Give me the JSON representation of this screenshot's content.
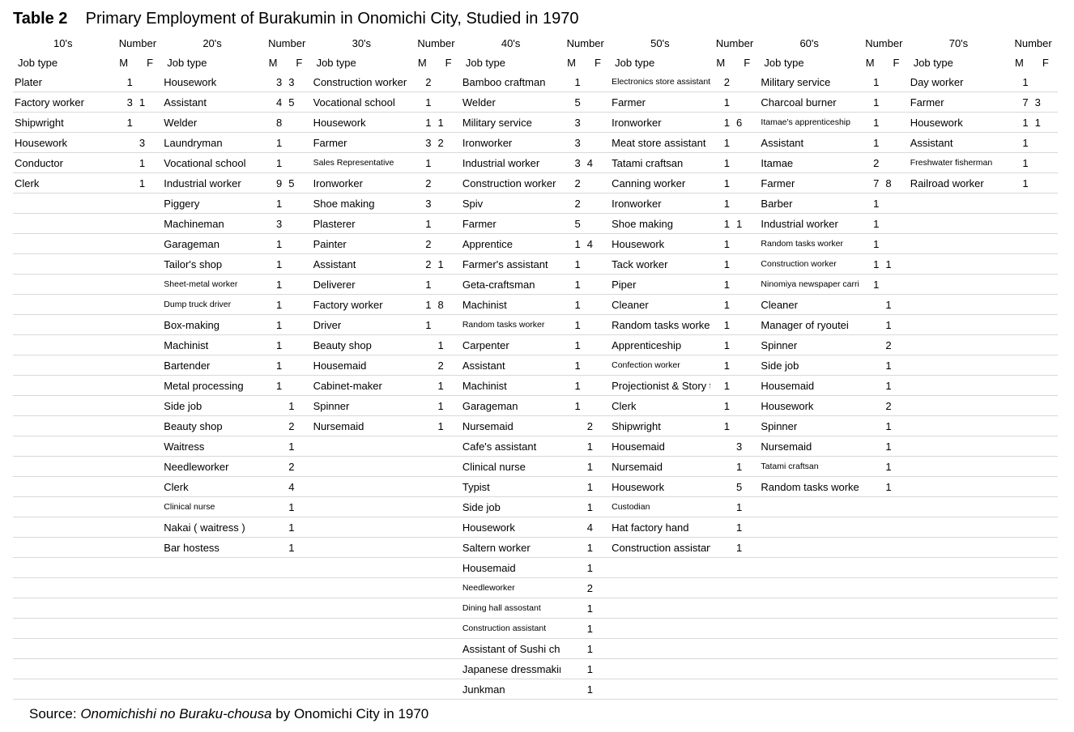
{
  "title_label": "Table 2",
  "title_text": "Primary Employment of Burakumin in Onomichi City, Studied in 1970",
  "source_prefix": "Source: ",
  "source_italic": "Onomichishi no Buraku-chousa ",
  "source_suffix": "by Onomichi City in 1970",
  "header": {
    "decades": [
      "10's",
      "20's",
      "30's",
      "40's",
      "50's",
      "60's",
      "70's"
    ],
    "number": "Number",
    "job": "Job type",
    "m": "M",
    "f": "F"
  },
  "small_labels": {
    "50_0": true,
    "50_14": true,
    "50_21": true,
    "60_2": true,
    "60_8": true,
    "60_9": true,
    "60_10": true,
    "60_19": true,
    "40_25": true,
    "40_26": true,
    "40_27": true,
    "40_12": true,
    "30_4": true,
    "70_4": true,
    "20_10": true,
    "20_11": true,
    "20_21": true
  },
  "rows": [
    {
      "c10": {
        "j": "Plater",
        "m": "1",
        "f": ""
      },
      "c20": {
        "j": "Housework",
        "m": "3",
        "f": "3"
      },
      "c30": {
        "j": "Construction worker",
        "m": "2",
        "f": ""
      },
      "c40": {
        "j": "Bamboo craftman",
        "m": "1",
        "f": ""
      },
      "c50": {
        "j": "Electronics store assistant",
        "m": "2",
        "f": ""
      },
      "c60": {
        "j": "Military service",
        "m": "1",
        "f": ""
      },
      "c70": {
        "j": "Day worker",
        "m": "1",
        "f": ""
      }
    },
    {
      "c10": {
        "j": "Factory worker",
        "m": "3",
        "f": "1"
      },
      "c20": {
        "j": "Assistant",
        "m": "4",
        "f": "5"
      },
      "c30": {
        "j": "Vocational school",
        "m": "1",
        "f": ""
      },
      "c40": {
        "j": "Welder",
        "m": "5",
        "f": ""
      },
      "c50": {
        "j": "Farmer",
        "m": "1",
        "f": ""
      },
      "c60": {
        "j": "Charcoal burner",
        "m": "1",
        "f": ""
      },
      "c70": {
        "j": "Farmer",
        "m": "7",
        "f": "3"
      }
    },
    {
      "c10": {
        "j": "Shipwright",
        "m": "1",
        "f": ""
      },
      "c20": {
        "j": "Welder",
        "m": "8",
        "f": ""
      },
      "c30": {
        "j": "Housework",
        "m": "1",
        "f": "1"
      },
      "c40": {
        "j": "Military service",
        "m": "3",
        "f": ""
      },
      "c50": {
        "j": "Ironworker",
        "m": "1",
        "f": "6"
      },
      "c60": {
        "j": "Itamae's apprenticeship",
        "m": "1",
        "f": ""
      },
      "c70": {
        "j": "Housework",
        "m": "1",
        "f": "1"
      }
    },
    {
      "c10": {
        "j": "Housework",
        "m": "",
        "f": "3"
      },
      "c20": {
        "j": "Laundryman",
        "m": "1",
        "f": ""
      },
      "c30": {
        "j": "Farmer",
        "m": "3",
        "f": "2"
      },
      "c40": {
        "j": "Ironworker",
        "m": "3",
        "f": ""
      },
      "c50": {
        "j": "Meat store assistant",
        "m": "1",
        "f": ""
      },
      "c60": {
        "j": "Assistant",
        "m": "1",
        "f": ""
      },
      "c70": {
        "j": "Assistant",
        "m": "1",
        "f": ""
      }
    },
    {
      "c10": {
        "j": "Conductor",
        "m": "",
        "f": "1"
      },
      "c20": {
        "j": "Vocational school",
        "m": "1",
        "f": ""
      },
      "c30": {
        "j": "Sales Representative",
        "m": "1",
        "f": ""
      },
      "c40": {
        "j": "Industrial worker",
        "m": "3",
        "f": "4"
      },
      "c50": {
        "j": "Tatami craftsan",
        "m": "1",
        "f": ""
      },
      "c60": {
        "j": "Itamae",
        "m": "2",
        "f": ""
      },
      "c70": {
        "j": "Freshwater fisherman",
        "m": "1",
        "f": ""
      }
    },
    {
      "c10": {
        "j": "Clerk",
        "m": "",
        "f": "1"
      },
      "c20": {
        "j": "Industrial worker",
        "m": "9",
        "f": "5"
      },
      "c30": {
        "j": "Ironworker",
        "m": "2",
        "f": ""
      },
      "c40": {
        "j": "Construction worker",
        "m": "2",
        "f": ""
      },
      "c50": {
        "j": "Canning worker",
        "m": "1",
        "f": ""
      },
      "c60": {
        "j": "Farmer",
        "m": "7",
        "f": "8"
      },
      "c70": {
        "j": "Railroad worker",
        "m": "1",
        "f": ""
      }
    },
    {
      "c10": {
        "j": "",
        "m": "",
        "f": ""
      },
      "c20": {
        "j": "Piggery",
        "m": "1",
        "f": ""
      },
      "c30": {
        "j": "Shoe making",
        "m": "3",
        "f": ""
      },
      "c40": {
        "j": "Spiv",
        "m": "2",
        "f": ""
      },
      "c50": {
        "j": "Ironworker",
        "m": "1",
        "f": ""
      },
      "c60": {
        "j": "Barber",
        "m": "1",
        "f": ""
      },
      "c70": {
        "j": "",
        "m": "",
        "f": ""
      }
    },
    {
      "c10": {
        "j": "",
        "m": "",
        "f": ""
      },
      "c20": {
        "j": "Machineman",
        "m": "3",
        "f": ""
      },
      "c30": {
        "j": "Plasterer",
        "m": "1",
        "f": ""
      },
      "c40": {
        "j": "Farmer",
        "m": "5",
        "f": ""
      },
      "c50": {
        "j": "Shoe making",
        "m": "1",
        "f": "1"
      },
      "c60": {
        "j": "Industrial worker",
        "m": "1",
        "f": ""
      },
      "c70": {
        "j": "",
        "m": "",
        "f": ""
      }
    },
    {
      "c10": {
        "j": "",
        "m": "",
        "f": ""
      },
      "c20": {
        "j": "Garageman",
        "m": "1",
        "f": ""
      },
      "c30": {
        "j": "Painter",
        "m": "2",
        "f": ""
      },
      "c40": {
        "j": "Apprentice",
        "m": "1",
        "f": "4"
      },
      "c50": {
        "j": "Housework",
        "m": "1",
        "f": ""
      },
      "c60": {
        "j": "Random tasks worker",
        "m": "1",
        "f": ""
      },
      "c70": {
        "j": "",
        "m": "",
        "f": ""
      }
    },
    {
      "c10": {
        "j": "",
        "m": "",
        "f": ""
      },
      "c20": {
        "j": "Tailor's shop",
        "m": "1",
        "f": ""
      },
      "c30": {
        "j": "Assistant",
        "m": "2",
        "f": "1"
      },
      "c40": {
        "j": "Farmer's assistant",
        "m": "1",
        "f": ""
      },
      "c50": {
        "j": "Tack worker",
        "m": "1",
        "f": ""
      },
      "c60": {
        "j": "Construction worker",
        "m": "1",
        "f": "1"
      },
      "c70": {
        "j": "",
        "m": "",
        "f": ""
      }
    },
    {
      "c10": {
        "j": "",
        "m": "",
        "f": ""
      },
      "c20": {
        "j": "Sheet-metal worker",
        "m": "1",
        "f": ""
      },
      "c30": {
        "j": "Deliverer",
        "m": "1",
        "f": ""
      },
      "c40": {
        "j": "Geta-craftsman",
        "m": "1",
        "f": ""
      },
      "c50": {
        "j": "Piper",
        "m": "1",
        "f": ""
      },
      "c60": {
        "j": "Ninomiya newspaper carrier",
        "m": "1",
        "f": ""
      },
      "c70": {
        "j": "",
        "m": "",
        "f": ""
      }
    },
    {
      "c10": {
        "j": "",
        "m": "",
        "f": ""
      },
      "c20": {
        "j": "Dump truck driver",
        "m": "1",
        "f": ""
      },
      "c30": {
        "j": "Factory worker",
        "m": "1",
        "f": "8"
      },
      "c40": {
        "j": "Machinist",
        "m": "1",
        "f": ""
      },
      "c50": {
        "j": "Cleaner",
        "m": "1",
        "f": ""
      },
      "c60": {
        "j": "Cleaner",
        "m": "",
        "f": "1"
      },
      "c70": {
        "j": "",
        "m": "",
        "f": ""
      }
    },
    {
      "c10": {
        "j": "",
        "m": "",
        "f": ""
      },
      "c20": {
        "j": "Box-making",
        "m": "1",
        "f": ""
      },
      "c30": {
        "j": "Driver",
        "m": "1",
        "f": ""
      },
      "c40": {
        "j": "Random tasks worker",
        "m": "1",
        "f": ""
      },
      "c50": {
        "j": "Random tasks worker",
        "m": "1",
        "f": ""
      },
      "c60": {
        "j": "Manager of ryoutei",
        "m": "",
        "f": "1"
      },
      "c70": {
        "j": "",
        "m": "",
        "f": ""
      }
    },
    {
      "c10": {
        "j": "",
        "m": "",
        "f": ""
      },
      "c20": {
        "j": "Machinist",
        "m": "1",
        "f": ""
      },
      "c30": {
        "j": "Beauty shop",
        "m": "",
        "f": "1"
      },
      "c40": {
        "j": "Carpenter",
        "m": "1",
        "f": ""
      },
      "c50": {
        "j": "Apprenticeship",
        "m": "1",
        "f": ""
      },
      "c60": {
        "j": "Spinner",
        "m": "",
        "f": "2"
      },
      "c70": {
        "j": "",
        "m": "",
        "f": ""
      }
    },
    {
      "c10": {
        "j": "",
        "m": "",
        "f": ""
      },
      "c20": {
        "j": "Bartender",
        "m": "1",
        "f": ""
      },
      "c30": {
        "j": "Housemaid",
        "m": "",
        "f": "2"
      },
      "c40": {
        "j": "Assistant",
        "m": "1",
        "f": ""
      },
      "c50": {
        "j": "Confection worker",
        "m": "1",
        "f": ""
      },
      "c60": {
        "j": "Side job",
        "m": "",
        "f": "1"
      },
      "c70": {
        "j": "",
        "m": "",
        "f": ""
      }
    },
    {
      "c10": {
        "j": "",
        "m": "",
        "f": ""
      },
      "c20": {
        "j": "Metal processing",
        "m": "1",
        "f": ""
      },
      "c30": {
        "j": "Cabinet-maker",
        "m": "",
        "f": "1"
      },
      "c40": {
        "j": "Machinist",
        "m": "1",
        "f": ""
      },
      "c50": {
        "j": "Projectionist &  Story teller",
        "m": "1",
        "f": ""
      },
      "c60": {
        "j": "Housemaid",
        "m": "",
        "f": "1"
      },
      "c70": {
        "j": "",
        "m": "",
        "f": ""
      }
    },
    {
      "c10": {
        "j": "",
        "m": "",
        "f": ""
      },
      "c20": {
        "j": "Side job",
        "m": "",
        "f": "1"
      },
      "c30": {
        "j": "Spinner",
        "m": "",
        "f": "1"
      },
      "c40": {
        "j": "Garageman",
        "m": "1",
        "f": ""
      },
      "c50": {
        "j": "Clerk",
        "m": "1",
        "f": ""
      },
      "c60": {
        "j": "Housework",
        "m": "",
        "f": "2"
      },
      "c70": {
        "j": "",
        "m": "",
        "f": ""
      }
    },
    {
      "c10": {
        "j": "",
        "m": "",
        "f": ""
      },
      "c20": {
        "j": "Beauty shop",
        "m": "",
        "f": "2"
      },
      "c30": {
        "j": "Nursemaid",
        "m": "",
        "f": "1"
      },
      "c40": {
        "j": "Nursemaid",
        "m": "",
        "f": "2"
      },
      "c50": {
        "j": "Shipwright",
        "m": "1",
        "f": ""
      },
      "c60": {
        "j": "Spinner",
        "m": "",
        "f": "1"
      },
      "c70": {
        "j": "",
        "m": "",
        "f": ""
      }
    },
    {
      "c10": {
        "j": "",
        "m": "",
        "f": ""
      },
      "c20": {
        "j": "Waitress",
        "m": "",
        "f": "1"
      },
      "c30": {
        "j": "",
        "m": "",
        "f": ""
      },
      "c40": {
        "j": "Cafe's assistant",
        "m": "",
        "f": "1"
      },
      "c50": {
        "j": "Housemaid",
        "m": "",
        "f": "3"
      },
      "c60": {
        "j": "Nursemaid",
        "m": "",
        "f": "1"
      },
      "c70": {
        "j": "",
        "m": "",
        "f": ""
      }
    },
    {
      "c10": {
        "j": "",
        "m": "",
        "f": ""
      },
      "c20": {
        "j": "Needleworker",
        "m": "",
        "f": "2"
      },
      "c30": {
        "j": "",
        "m": "",
        "f": ""
      },
      "c40": {
        "j": "Clinical nurse",
        "m": "",
        "f": "1"
      },
      "c50": {
        "j": "Nursemaid",
        "m": "",
        "f": "1"
      },
      "c60": {
        "j": "Tatami craftsan",
        "m": "",
        "f": "1"
      },
      "c70": {
        "j": "",
        "m": "",
        "f": ""
      }
    },
    {
      "c10": {
        "j": "",
        "m": "",
        "f": ""
      },
      "c20": {
        "j": "Clerk",
        "m": "",
        "f": "4"
      },
      "c30": {
        "j": "",
        "m": "",
        "f": ""
      },
      "c40": {
        "j": "Typist",
        "m": "",
        "f": "1"
      },
      "c50": {
        "j": "Housework",
        "m": "",
        "f": "5"
      },
      "c60": {
        "j": "Random tasks worker",
        "m": "",
        "f": "1"
      },
      "c70": {
        "j": "",
        "m": "",
        "f": ""
      }
    },
    {
      "c10": {
        "j": "",
        "m": "",
        "f": ""
      },
      "c20": {
        "j": "Clinical nurse",
        "m": "",
        "f": "1"
      },
      "c30": {
        "j": "",
        "m": "",
        "f": ""
      },
      "c40": {
        "j": "Side job",
        "m": "",
        "f": "1"
      },
      "c50": {
        "j": "Custodian",
        "m": "",
        "f": "1"
      },
      "c60": {
        "j": "",
        "m": "",
        "f": ""
      },
      "c70": {
        "j": "",
        "m": "",
        "f": ""
      }
    },
    {
      "c10": {
        "j": "",
        "m": "",
        "f": ""
      },
      "c20": {
        "j": "Nakai  ( waitress )",
        "m": "",
        "f": "1"
      },
      "c30": {
        "j": "",
        "m": "",
        "f": ""
      },
      "c40": {
        "j": "Housework",
        "m": "",
        "f": "4"
      },
      "c50": {
        "j": "Hat factory hand",
        "m": "",
        "f": "1"
      },
      "c60": {
        "j": "",
        "m": "",
        "f": ""
      },
      "c70": {
        "j": "",
        "m": "",
        "f": ""
      }
    },
    {
      "c10": {
        "j": "",
        "m": "",
        "f": ""
      },
      "c20": {
        "j": "Bar hostess",
        "m": "",
        "f": "1"
      },
      "c30": {
        "j": "",
        "m": "",
        "f": ""
      },
      "c40": {
        "j": "Saltern worker",
        "m": "",
        "f": "1"
      },
      "c50": {
        "j": "Construction assistant",
        "m": "",
        "f": "1"
      },
      "c60": {
        "j": "",
        "m": "",
        "f": ""
      },
      "c70": {
        "j": "",
        "m": "",
        "f": ""
      }
    },
    {
      "c10": {
        "j": "",
        "m": "",
        "f": ""
      },
      "c20": {
        "j": "",
        "m": "",
        "f": ""
      },
      "c30": {
        "j": "",
        "m": "",
        "f": ""
      },
      "c40": {
        "j": "Housemaid",
        "m": "",
        "f": "1"
      },
      "c50": {
        "j": "",
        "m": "",
        "f": ""
      },
      "c60": {
        "j": "",
        "m": "",
        "f": ""
      },
      "c70": {
        "j": "",
        "m": "",
        "f": ""
      }
    },
    {
      "c10": {
        "j": "",
        "m": "",
        "f": ""
      },
      "c20": {
        "j": "",
        "m": "",
        "f": ""
      },
      "c30": {
        "j": "",
        "m": "",
        "f": ""
      },
      "c40": {
        "j": "Needleworker",
        "m": "",
        "f": "2"
      },
      "c50": {
        "j": "",
        "m": "",
        "f": ""
      },
      "c60": {
        "j": "",
        "m": "",
        "f": ""
      },
      "c70": {
        "j": "",
        "m": "",
        "f": ""
      }
    },
    {
      "c10": {
        "j": "",
        "m": "",
        "f": ""
      },
      "c20": {
        "j": "",
        "m": "",
        "f": ""
      },
      "c30": {
        "j": "",
        "m": "",
        "f": ""
      },
      "c40": {
        "j": "Dining hall assostant",
        "m": "",
        "f": "1"
      },
      "c50": {
        "j": "",
        "m": "",
        "f": ""
      },
      "c60": {
        "j": "",
        "m": "",
        "f": ""
      },
      "c70": {
        "j": "",
        "m": "",
        "f": ""
      }
    },
    {
      "c10": {
        "j": "",
        "m": "",
        "f": ""
      },
      "c20": {
        "j": "",
        "m": "",
        "f": ""
      },
      "c30": {
        "j": "",
        "m": "",
        "f": ""
      },
      "c40": {
        "j": "Construction assistant",
        "m": "",
        "f": "1"
      },
      "c50": {
        "j": "",
        "m": "",
        "f": ""
      },
      "c60": {
        "j": "",
        "m": "",
        "f": ""
      },
      "c70": {
        "j": "",
        "m": "",
        "f": ""
      }
    },
    {
      "c10": {
        "j": "",
        "m": "",
        "f": ""
      },
      "c20": {
        "j": "",
        "m": "",
        "f": ""
      },
      "c30": {
        "j": "",
        "m": "",
        "f": ""
      },
      "c40": {
        "j": "Assistant of Sushi chef",
        "m": "",
        "f": "1"
      },
      "c50": {
        "j": "",
        "m": "",
        "f": ""
      },
      "c60": {
        "j": "",
        "m": "",
        "f": ""
      },
      "c70": {
        "j": "",
        "m": "",
        "f": ""
      }
    },
    {
      "c10": {
        "j": "",
        "m": "",
        "f": ""
      },
      "c20": {
        "j": "",
        "m": "",
        "f": ""
      },
      "c30": {
        "j": "",
        "m": "",
        "f": ""
      },
      "c40": {
        "j": "Japanese dressmaking",
        "m": "",
        "f": "1"
      },
      "c50": {
        "j": "",
        "m": "",
        "f": ""
      },
      "c60": {
        "j": "",
        "m": "",
        "f": ""
      },
      "c70": {
        "j": "",
        "m": "",
        "f": ""
      }
    },
    {
      "c10": {
        "j": "",
        "m": "",
        "f": ""
      },
      "c20": {
        "j": "",
        "m": "",
        "f": ""
      },
      "c30": {
        "j": "",
        "m": "",
        "f": ""
      },
      "c40": {
        "j": "Junkman",
        "m": "",
        "f": "1"
      },
      "c50": {
        "j": "",
        "m": "",
        "f": ""
      },
      "c60": {
        "j": "",
        "m": "",
        "f": ""
      },
      "c70": {
        "j": "",
        "m": "",
        "f": ""
      }
    }
  ]
}
